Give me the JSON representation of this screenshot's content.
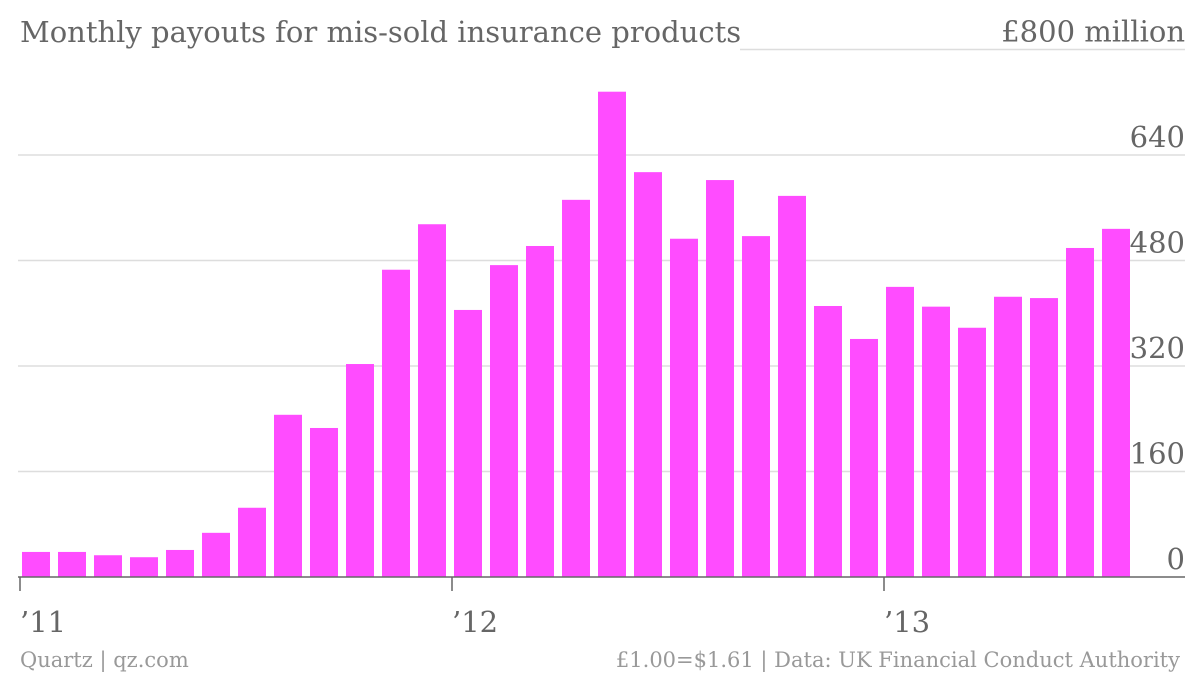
{
  "chart_data": {
    "type": "bar",
    "title": "Monthly payouts for mis-sold insurance products",
    "source": "Quartz | qz.com",
    "note": "£1.00=$1.61 | Data: UK Financial Conduct Authority",
    "categories": [
      "’11",
      null,
      null,
      null,
      null,
      null,
      null,
      null,
      null,
      null,
      null,
      null,
      "’12",
      null,
      null,
      null,
      null,
      null,
      null,
      null,
      null,
      null,
      null,
      null,
      "’13",
      null,
      null,
      null,
      null,
      null,
      null
    ],
    "values": [
      38,
      38,
      33,
      30,
      41,
      67,
      105,
      246,
      226,
      323,
      466,
      535,
      405,
      473,
      502,
      572,
      736,
      614,
      513,
      602,
      517,
      578,
      411,
      361,
      440,
      410,
      378,
      425,
      423,
      499,
      528
    ],
    "color": "#ff4cff",
    "ylim": [
      0,
      800
    ],
    "yticks": [
      0,
      160,
      320,
      480,
      640,
      {
        "value": 800,
        "label": "£800 million"
      }
    ],
    "grid": true
  }
}
